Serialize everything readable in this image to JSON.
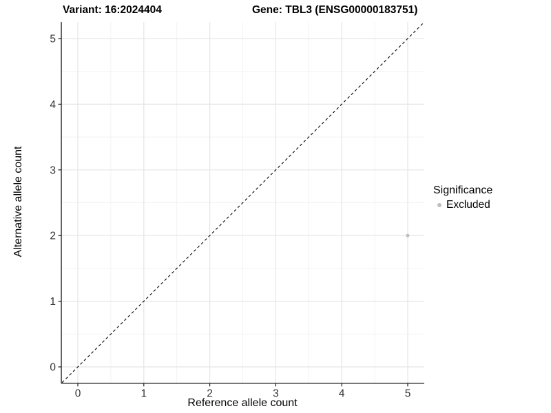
{
  "header": {
    "variant_title": "Variant: 16:2024404",
    "gene_title": "Gene: TBL3 (ENSG00000183751)"
  },
  "chart_data": {
    "type": "scatter",
    "title_left": "Variant: 16:2024404",
    "title_right": "Gene: TBL3 (ENSG00000183751)",
    "xlabel": "Reference allele count",
    "ylabel": "Alternative allele count",
    "xlim": [
      -0.25,
      5.25
    ],
    "ylim": [
      -0.25,
      5.25
    ],
    "x_ticks": [
      0,
      1,
      2,
      3,
      4,
      5
    ],
    "y_ticks": [
      0,
      1,
      2,
      3,
      4,
      5
    ],
    "minor_breaks": [
      0.5,
      1.5,
      2.5,
      3.5,
      4.5
    ],
    "grid": "major-and-minor",
    "series": [
      {
        "name": "Excluded",
        "color": "#bebebe",
        "points": [
          {
            "x": 5,
            "y": 2
          }
        ]
      }
    ],
    "reference_line": {
      "kind": "identity",
      "style": "dashed",
      "color": "#000000"
    },
    "legend": {
      "title": "Significance",
      "position": "right",
      "entries": [
        {
          "label": "Excluded",
          "color": "#bebebe"
        }
      ]
    },
    "colors": {
      "background": "#ffffff",
      "axis_line": "#1a1a1a",
      "tick_label": "#333333",
      "major_grid": "#e5e5e5",
      "minor_grid": "#f2f2f2",
      "point": "#bebebe"
    }
  }
}
